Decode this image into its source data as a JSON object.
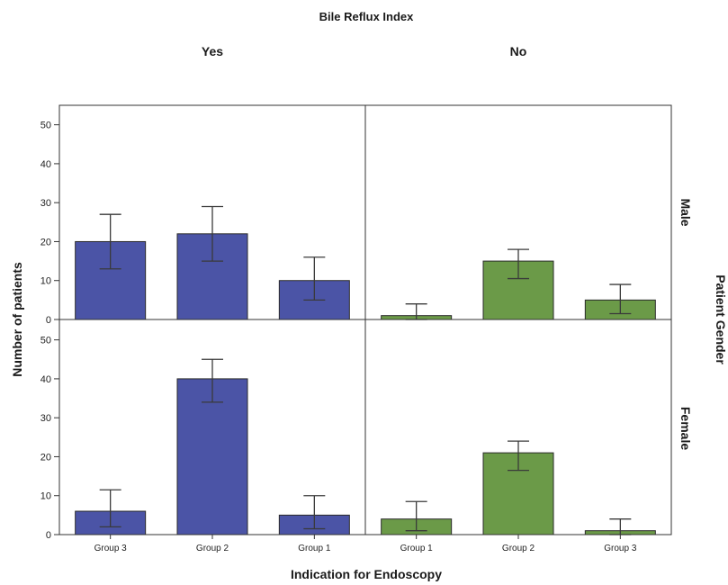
{
  "chart_data": {
    "type": "bar",
    "title": "Bile Reflux Index",
    "xlabel": "Indication for Endoscopy",
    "ylabel": "Number of patients",
    "row_facet_label": "Patient Gender",
    "ylim": [
      0,
      55
    ],
    "yticks": [
      "0",
      "10",
      "20",
      "30",
      "40",
      "50"
    ],
    "grid": false,
    "columns": [
      {
        "label": "Yes",
        "color": "#4b54a6",
        "categories": [
          "Group 3",
          "Group 2",
          "Group 1"
        ],
        "panels": [
          {
            "row": "Male",
            "values": [
              20,
              22,
              10
            ],
            "err_low": [
              13,
              15,
              5
            ],
            "err_high": [
              27,
              29,
              16
            ]
          },
          {
            "row": "Female",
            "values": [
              6,
              40,
              5
            ],
            "err_low": [
              2,
              34,
              1.5
            ],
            "err_high": [
              11.5,
              45,
              10
            ]
          }
        ]
      },
      {
        "label": "No",
        "color": "#6b9a48",
        "categories": [
          "Group 1",
          "Group 2",
          "Group 3"
        ],
        "panels": [
          {
            "row": "Male",
            "values": [
              1,
              15,
              5
            ],
            "err_low": [
              0,
              10.5,
              1.5
            ],
            "err_high": [
              4,
              18,
              9
            ]
          },
          {
            "row": "Female",
            "values": [
              4,
              21,
              1
            ],
            "err_low": [
              1,
              16.5,
              0
            ],
            "err_high": [
              8.5,
              24,
              4
            ]
          }
        ]
      }
    ]
  }
}
